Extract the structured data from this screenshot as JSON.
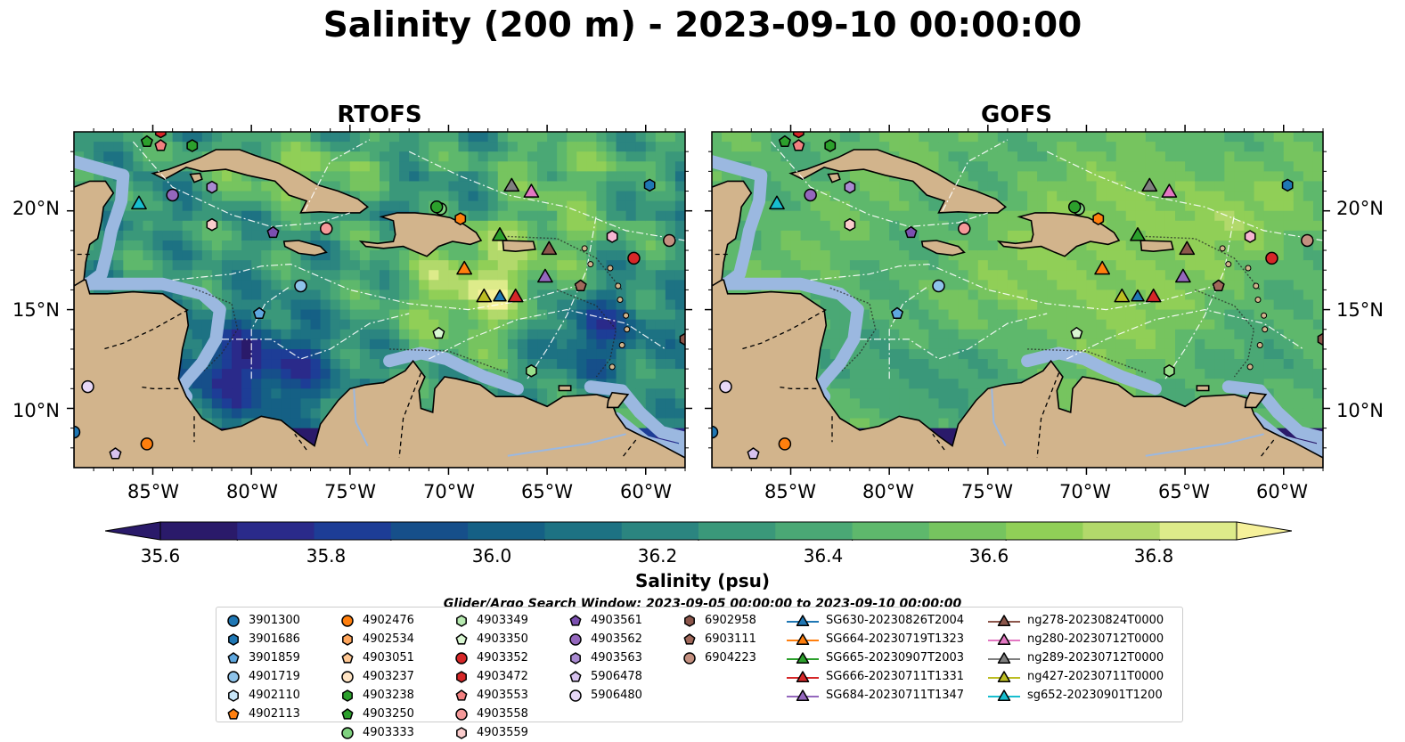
{
  "title": "Salinity (200 m) - 2023-09-10 00:00:00",
  "panels": [
    {
      "title": "RTOFS",
      "variant": "rtofs"
    },
    {
      "title": "GOFS",
      "variant": "gofs"
    }
  ],
  "colors": {
    "land": "#d2b48c",
    "shelf": "#9bb8e0",
    "colormap": [
      "#2a1a6a",
      "#2a2a8a",
      "#1d3d96",
      "#164f8a",
      "#156085",
      "#1d7283",
      "#2b8580",
      "#3a987a",
      "#4aa875",
      "#5eb86c",
      "#76c45f",
      "#90cf57",
      "#b2d96b",
      "#ddeb8a",
      "#f6f19a"
    ]
  },
  "chart_data": [
    {
      "type": "heatmap",
      "title": "RTOFS",
      "xlabel": "",
      "ylabel": "",
      "xlim": [
        -89,
        -58
      ],
      "ylim": [
        7,
        24
      ],
      "xticks": [
        "85°W",
        "80°W",
        "75°W",
        "70°W",
        "65°W",
        "60°W"
      ],
      "yticks": [
        "10°N",
        "15°N",
        "20°N"
      ]
    },
    {
      "type": "heatmap",
      "title": "GOFS",
      "xlabel": "",
      "ylabel": "",
      "xlim": [
        -89,
        -58
      ],
      "ylim": [
        7,
        24
      ],
      "xticks": [
        "85°W",
        "80°W",
        "75°W",
        "70°W",
        "65°W",
        "60°W"
      ],
      "yticks": [
        "10°N",
        "15°N",
        "20°N"
      ]
    }
  ],
  "colorbar": {
    "label": "Salinity (psu)",
    "min": 35.5,
    "max": 36.9,
    "step": 0.1,
    "ticks": [
      "35.6",
      "35.8",
      "36.0",
      "36.2",
      "36.4",
      "36.6",
      "36.8"
    ],
    "extend": "both"
  },
  "search_window": "Glider/Argo Search Window: 2023-09-05 00:00:00 to 2023-09-10 00:00:00",
  "floats": [
    {
      "id": "3901300",
      "marker": "circle",
      "color": "#1f77b4",
      "lon": -89,
      "lat": 8.8
    },
    {
      "id": "3901686",
      "marker": "hexagon",
      "color": "#1f77b4",
      "lon": -59.8,
      "lat": 21.3
    },
    {
      "id": "3901859",
      "marker": "pentagon",
      "color": "#5fa8e0",
      "lon": -79.6,
      "lat": 14.8
    },
    {
      "id": "4901719",
      "marker": "circle",
      "color": "#8ec3ea",
      "lon": -77.5,
      "lat": 16.2
    },
    {
      "id": "4902110",
      "marker": "hexagon",
      "color": "#c8e6f8",
      "lon": -80,
      "lat": 26
    },
    {
      "id": "4902113",
      "marker": "pentagon",
      "color": "#ff7f0e",
      "lon": -84,
      "lat": 26
    },
    {
      "id": "4902476",
      "marker": "circle",
      "color": "#ff7f0e",
      "lon": -85.3,
      "lat": 8.2
    },
    {
      "id": "4902534",
      "marker": "hexagon",
      "color": "#ffa65c",
      "lon": -70,
      "lat": 26
    },
    {
      "id": "4903051",
      "marker": "pentagon",
      "color": "#ffc894",
      "lon": -72,
      "lat": 26
    },
    {
      "id": "4903237",
      "marker": "circle",
      "color": "#ffe4c4",
      "lon": -74,
      "lat": 26
    },
    {
      "id": "4903238",
      "marker": "hexagon",
      "color": "#2ca02c",
      "lon": -83,
      "lat": 23.3
    },
    {
      "id": "4903250",
      "marker": "pentagon",
      "color": "#2ca02c",
      "lon": -85.3,
      "lat": 23.5
    },
    {
      "id": "4903333",
      "marker": "circle",
      "color": "#7fd17f",
      "lon": -70.4,
      "lat": 20.1
    },
    {
      "id": "4903349",
      "marker": "hexagon",
      "color": "#b7eab0",
      "lon": -76,
      "lat": 26
    },
    {
      "id": "4903350",
      "marker": "pentagon",
      "color": "#d9f7d2",
      "lon": -70.5,
      "lat": 13.8
    },
    {
      "id": "4903352",
      "marker": "circle",
      "color": "#d62728",
      "lon": -60.6,
      "lat": 17.6
    },
    {
      "id": "4903472",
      "marker": "hexagon",
      "color": "#d62728",
      "lon": -84.6,
      "lat": 24.0
    },
    {
      "id": "4903553",
      "marker": "pentagon",
      "color": "#f28080",
      "lon": -84.6,
      "lat": 23.3
    },
    {
      "id": "4903558",
      "marker": "circle",
      "color": "#f59999",
      "lon": -76.2,
      "lat": 19.1
    },
    {
      "id": "4903559",
      "marker": "hexagon",
      "color": "#fbcccc",
      "lon": -82,
      "lat": 19.3
    },
    {
      "id": "4903561",
      "marker": "pentagon",
      "color": "#7b4fb0",
      "lon": -78.9,
      "lat": 18.9
    },
    {
      "id": "4903562",
      "marker": "circle",
      "color": "#9467bd",
      "lon": -84,
      "lat": 20.8
    },
    {
      "id": "4903563",
      "marker": "hexagon",
      "color": "#a98ad1",
      "lon": -82,
      "lat": 21.2
    },
    {
      "id": "5906478",
      "marker": "pentagon",
      "color": "#d7c2ee",
      "lon": -86.9,
      "lat": 7.7
    },
    {
      "id": "5906480",
      "marker": "circle",
      "color": "#e7d7f6",
      "lon": -88.3,
      "lat": 11.1
    },
    {
      "id": "6902958",
      "marker": "hexagon",
      "color": "#8c564b",
      "lon": -58,
      "lat": 13.5
    },
    {
      "id": "6903111",
      "marker": "pentagon",
      "color": "#a0685a",
      "lon": -63.3,
      "lat": 16.2
    },
    {
      "id": "6904223",
      "marker": "circle",
      "color": "#c49080",
      "lon": -58.8,
      "lat": 18.5
    }
  ],
  "gliders": [
    {
      "id": "SG630-20230826T2004",
      "color": "#1f77b4",
      "lon": -72,
      "lat": 26
    },
    {
      "id": "SG664-20230719T1323",
      "color": "#ff7f0e",
      "lon": -69.2,
      "lat": 17.1
    },
    {
      "id": "SG665-20230907T2003",
      "color": "#2ca02c",
      "lon": -67.4,
      "lat": 18.8
    },
    {
      "id": "SG666-20230711T1331",
      "color": "#d62728",
      "lon": -66.6,
      "lat": 15.7
    },
    {
      "id": "SG684-20230711T1347",
      "color": "#9467bd",
      "lon": -65.1,
      "lat": 16.7
    },
    {
      "id": "ng278-20230824T0000",
      "color": "#8c564b",
      "lon": -64.9,
      "lat": 18.1
    },
    {
      "id": "ng280-20230712T0000",
      "color": "#e377c2",
      "lon": -65.8,
      "lat": 21.0
    },
    {
      "id": "ng289-20230712T0000",
      "color": "#7f7f7f",
      "lon": -66.8,
      "lat": 21.3
    },
    {
      "id": "ng427-20230711T0000",
      "color": "#bcbd22",
      "lon": -68.2,
      "lat": 15.7
    },
    {
      "id": "sg652-20230901T1200",
      "color": "#17becf",
      "lon": -85.7,
      "lat": 20.4
    }
  ],
  "extra_points": [
    {
      "marker": "hexagon",
      "color": "#ff7f0e",
      "lon": -69.4,
      "lat": 19.6
    },
    {
      "marker": "circle",
      "color": "#2ca02c",
      "lon": -70.6,
      "lat": 20.2
    },
    {
      "marker": "triangle",
      "color": "#1f77b4",
      "lon": -67.4,
      "lat": 15.7
    },
    {
      "marker": "hexagon",
      "color": "#98df8a",
      "lon": -65.8,
      "lat": 11.9
    },
    {
      "marker": "hexagon",
      "color": "#f7b6d2",
      "lon": -61.7,
      "lat": 18.7
    }
  ]
}
